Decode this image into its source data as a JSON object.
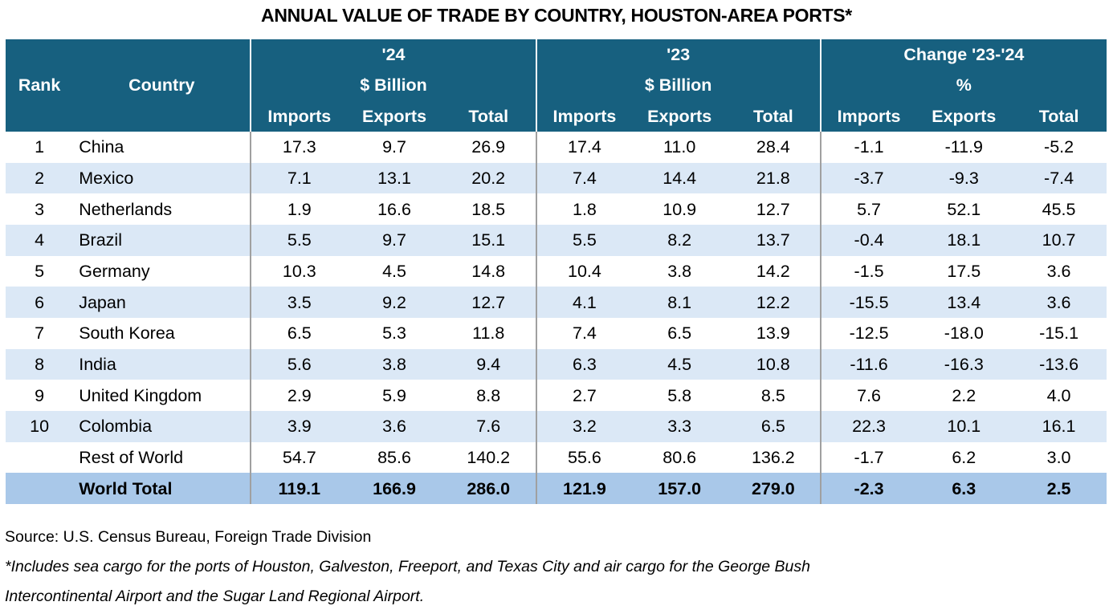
{
  "title": "ANNUAL VALUE OF TRADE BY COUNTRY, HOUSTON-AREA PORTS*",
  "header": {
    "rank": "Rank",
    "country": "Country",
    "groups": [
      {
        "line1": "'24",
        "line2": "$ Billion"
      },
      {
        "line1": "'23",
        "line2": "$ Billion"
      },
      {
        "line1": "Change '23-'24",
        "line2": "%"
      }
    ],
    "sub": [
      "Imports",
      "Exports",
      "Total"
    ]
  },
  "rows": [
    {
      "rank": "1",
      "country": "China",
      "v": [
        "17.3",
        "9.7",
        "26.9",
        "17.4",
        "11.0",
        "28.4",
        "-1.1",
        "-11.9",
        "-5.2"
      ]
    },
    {
      "rank": "2",
      "country": "Mexico",
      "v": [
        "7.1",
        "13.1",
        "20.2",
        "7.4",
        "14.4",
        "21.8",
        "-3.7",
        "-9.3",
        "-7.4"
      ]
    },
    {
      "rank": "3",
      "country": "Netherlands",
      "v": [
        "1.9",
        "16.6",
        "18.5",
        "1.8",
        "10.9",
        "12.7",
        "5.7",
        "52.1",
        "45.5"
      ]
    },
    {
      "rank": "4",
      "country": "Brazil",
      "v": [
        "5.5",
        "9.7",
        "15.1",
        "5.5",
        "8.2",
        "13.7",
        "-0.4",
        "18.1",
        "10.7"
      ]
    },
    {
      "rank": "5",
      "country": "Germany",
      "v": [
        "10.3",
        "4.5",
        "14.8",
        "10.4",
        "3.8",
        "14.2",
        "-1.5",
        "17.5",
        "3.6"
      ]
    },
    {
      "rank": "6",
      "country": "Japan",
      "v": [
        "3.5",
        "9.2",
        "12.7",
        "4.1",
        "8.1",
        "12.2",
        "-15.5",
        "13.4",
        "3.6"
      ]
    },
    {
      "rank": "7",
      "country": "South Korea",
      "v": [
        "6.5",
        "5.3",
        "11.8",
        "7.4",
        "6.5",
        "13.9",
        "-12.5",
        "-18.0",
        "-15.1"
      ]
    },
    {
      "rank": "8",
      "country": "India",
      "v": [
        "5.6",
        "3.8",
        "9.4",
        "6.3",
        "4.5",
        "10.8",
        "-11.6",
        "-16.3",
        "-13.6"
      ]
    },
    {
      "rank": "9",
      "country": "United Kingdom",
      "v": [
        "2.9",
        "5.9",
        "8.8",
        "2.7",
        "5.8",
        "8.5",
        "7.6",
        "2.2",
        "4.0"
      ]
    },
    {
      "rank": "10",
      "country": "Colombia",
      "v": [
        "3.9",
        "3.6",
        "7.6",
        "3.2",
        "3.3",
        "6.5",
        "22.3",
        "10.1",
        "16.1"
      ]
    },
    {
      "rank": "",
      "country": "Rest of World",
      "v": [
        "54.7",
        "85.6",
        "140.2",
        "55.6",
        "80.6",
        "136.2",
        "-1.7",
        "6.2",
        "3.0"
      ]
    },
    {
      "rank": "",
      "country": "World Total",
      "v": [
        "119.1",
        "166.9",
        "286.0",
        "121.9",
        "157.0",
        "279.0",
        "-2.3",
        "6.3",
        "2.5"
      ]
    }
  ],
  "footer": {
    "source": "Source: U.S. Census Bureau, Foreign Trade Division",
    "note_line1": "*Includes sea cargo for the ports of Houston, Galveston, Freeport, and Texas City and air cargo for the George Bush",
    "note_line2": "Intercontinental Airport and the Sugar Land Regional Airport."
  },
  "colors": {
    "header_bg": "#17607f",
    "alt_row": "#dbe8f6",
    "total_row": "#a9c8e9"
  }
}
